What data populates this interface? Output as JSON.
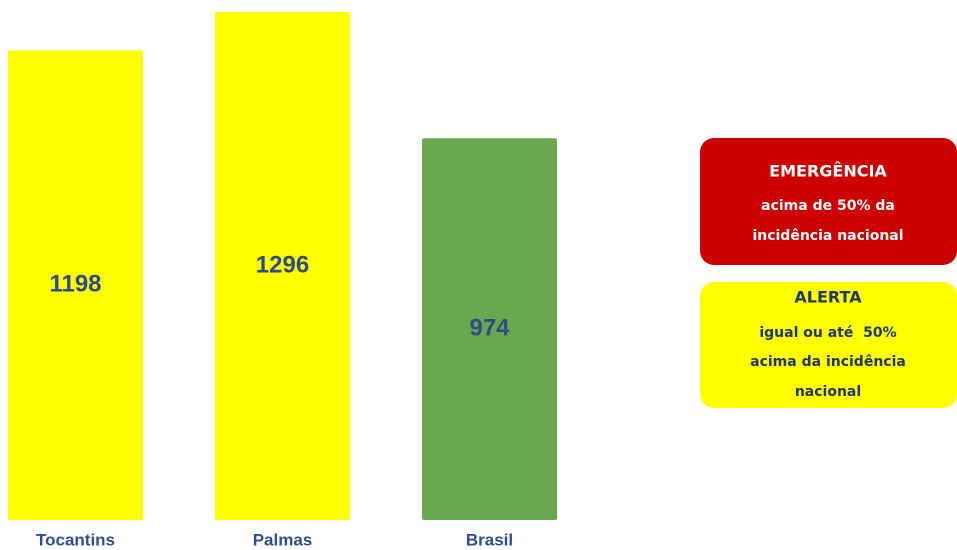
{
  "chart_data": {
    "type": "bar",
    "categories": [
      "Tocantins",
      "Palmas",
      "Brasil"
    ],
    "values": [
      1198,
      1296,
      974
    ],
    "colors": [
      "#ffff00",
      "#ffff00",
      "#6aa84f"
    ],
    "legend": [
      {
        "title": "EMERGÊNCIA",
        "lines": [
          "acima de 50% da",
          "incidência nacional"
        ],
        "color": "#cc0000",
        "text_color": "#ffffff"
      },
      {
        "title": "ALERTA",
        "lines": [
          "igual ou até  50%",
          "acima da incidência",
          "nacional"
        ],
        "color": "#ffff00",
        "text_color": "#1f3864"
      }
    ]
  }
}
